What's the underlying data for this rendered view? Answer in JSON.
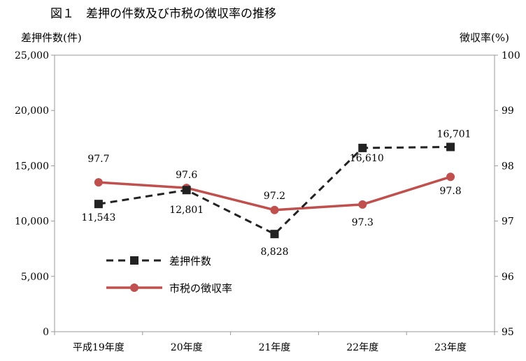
{
  "chart_data": {
    "type": "line",
    "title": "図１　差押の件数及び市税の徴収率の推移",
    "categories": [
      "平成19年度",
      "20年度",
      "21年度",
      "22年度",
      "23年度"
    ],
    "y_left": {
      "label": "差押件数(件)",
      "ylim": [
        0,
        25000
      ],
      "ticks": [
        "0",
        "5,000",
        "10,000",
        "15,000",
        "20,000",
        "25,000"
      ]
    },
    "y_right": {
      "label": "徴収率(%)",
      "ylim": [
        95,
        100
      ],
      "ticks": [
        "95",
        "96",
        "97",
        "98",
        "99",
        "100"
      ]
    },
    "grid": false,
    "legend_position": "lower-left inside plot",
    "series": [
      {
        "name": "差押件数",
        "axis": "left",
        "style": "dashed",
        "marker": "square",
        "color": "#222222",
        "values": [
          11543,
          12801,
          8828,
          16610,
          16701
        ],
        "labels": [
          "11,543",
          "12,801",
          "8,828",
          "16,610",
          "16,701"
        ]
      },
      {
        "name": "市税の徴収率",
        "axis": "right",
        "style": "solid",
        "marker": "circle",
        "color": "#c0504d",
        "values": [
          97.7,
          97.6,
          97.2,
          97.3,
          97.8
        ],
        "labels": [
          "97.7",
          "97.6",
          "97.2",
          "97.3",
          "97.8"
        ]
      }
    ]
  }
}
